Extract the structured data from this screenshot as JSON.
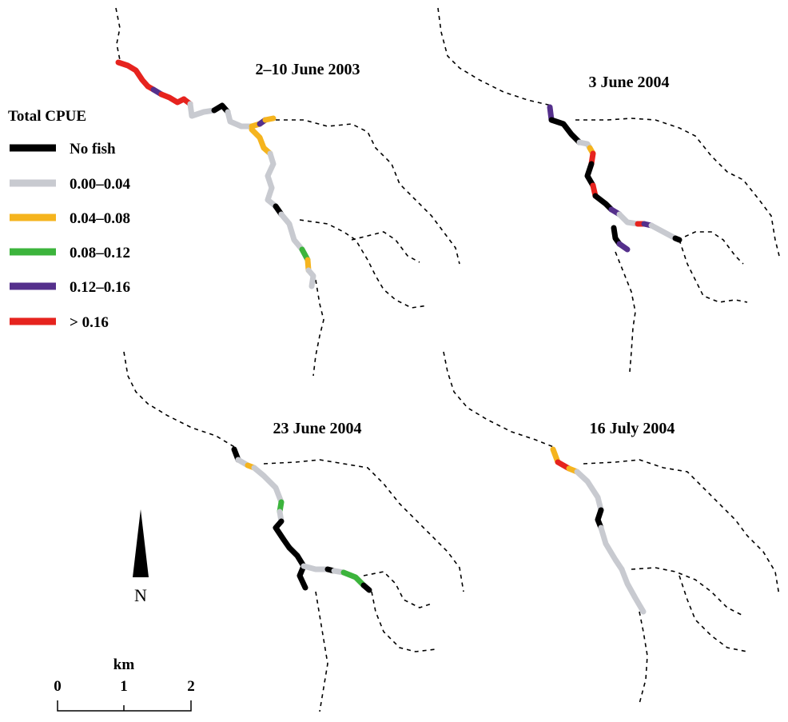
{
  "panels": [
    {
      "title": "2–10 June 2003",
      "segments": [
        "gt016",
        "gt016",
        "c012_016",
        "gt016",
        "gt016",
        "c000_004",
        "nofish",
        "c000_004",
        "c004_008",
        "c012_016",
        "c004_008",
        "c004_008",
        "c000_004",
        "c000_004",
        "nofish",
        "c000_004",
        "c008_012",
        "c004_008",
        "c000_004"
      ]
    },
    {
      "title": "3 June 2004",
      "segments": [
        "c012_016",
        "nofish",
        "c000_004",
        "c004_008",
        "gt016",
        "nofish",
        "gt016",
        "nofish",
        "c012_016",
        "c000_004",
        "gt016",
        "c012_016",
        "c000_004",
        "nofish",
        "nofish",
        "c012_016"
      ]
    },
    {
      "title": "23 June 2004",
      "segments": [
        "nofish",
        "c000_004",
        "c004_008",
        "c000_004",
        "c008_012",
        "c000_004",
        "nofish",
        "nofish",
        "nofish",
        "c000_004",
        "nofish",
        "c000_004",
        "c008_012",
        "nofish"
      ]
    },
    {
      "title": "16 July 2004",
      "segments": [
        "c004_008",
        "gt016",
        "c004_008",
        "c000_004",
        "nofish",
        "c000_004",
        "c000_004"
      ]
    }
  ],
  "legend": {
    "title": "Total CPUE",
    "items": [
      {
        "key": "nofish",
        "label": "No fish",
        "color": "#000000"
      },
      {
        "key": "c000_004",
        "label": "0.00–0.04",
        "color": "#c8cad0"
      },
      {
        "key": "c004_008",
        "label": "0.04–0.08",
        "color": "#f5b41e"
      },
      {
        "key": "c008_012",
        "label": "0.08–0.12",
        "color": "#3cb43c"
      },
      {
        "key": "c012_016",
        "label": "0.12–0.16",
        "color": "#55308c"
      },
      {
        "key": "gt016",
        "label": "> 0.16",
        "color": "#e6231e"
      }
    ]
  },
  "north_arrow": {
    "label": "N"
  },
  "scale_bar": {
    "unit": "km",
    "ticks": [
      "0",
      "1",
      "2"
    ]
  }
}
